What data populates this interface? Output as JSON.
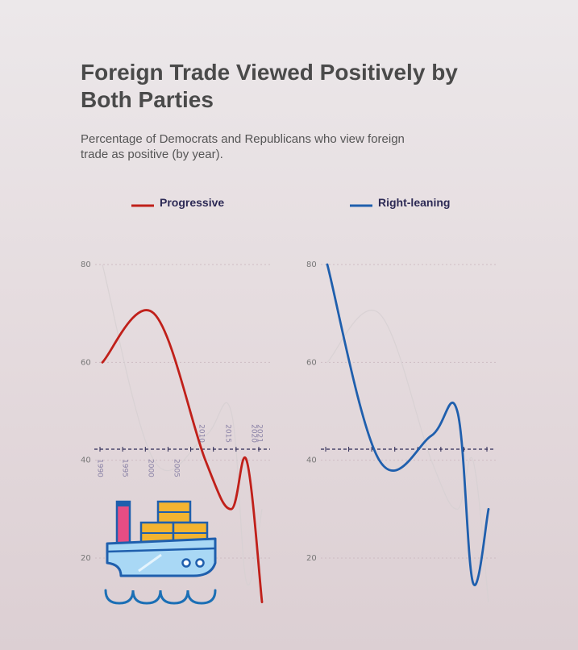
{
  "title": "Foreign Trade Viewed Positively by Both Parties",
  "subtitle": "Percentage of Democrats and Republicans who view foreign trade as positive (by year).",
  "chart_data": {
    "type": "line",
    "title": "Foreign Trade Viewed Positively by Both Parties",
    "subtitle": "Percentage of Democrats and Republicans who view foreign trade as positive (by year).",
    "x": [
      1990,
      2000,
      2010,
      2015,
      2018,
      2021
    ],
    "x_ticks": [
      "1990",
      "1995",
      "2000",
      "2005",
      "2010",
      "2015",
      "2020",
      "2021"
    ],
    "y_ticks": [
      "80",
      "60",
      "40",
      "20"
    ],
    "ylim": [
      10,
      80
    ],
    "legend_placement": "top",
    "grid": true,
    "series": [
      {
        "name": "Progressive",
        "color": "#c0201a",
        "values": [
          60,
          70,
          40,
          30,
          40,
          11
        ]
      },
      {
        "name": "Right-leaning",
        "color": "#1f5fad",
        "values": [
          80,
          40,
          45,
          50,
          15,
          30
        ]
      }
    ]
  },
  "illustration": {
    "icon": "cargo-ship-icon"
  }
}
